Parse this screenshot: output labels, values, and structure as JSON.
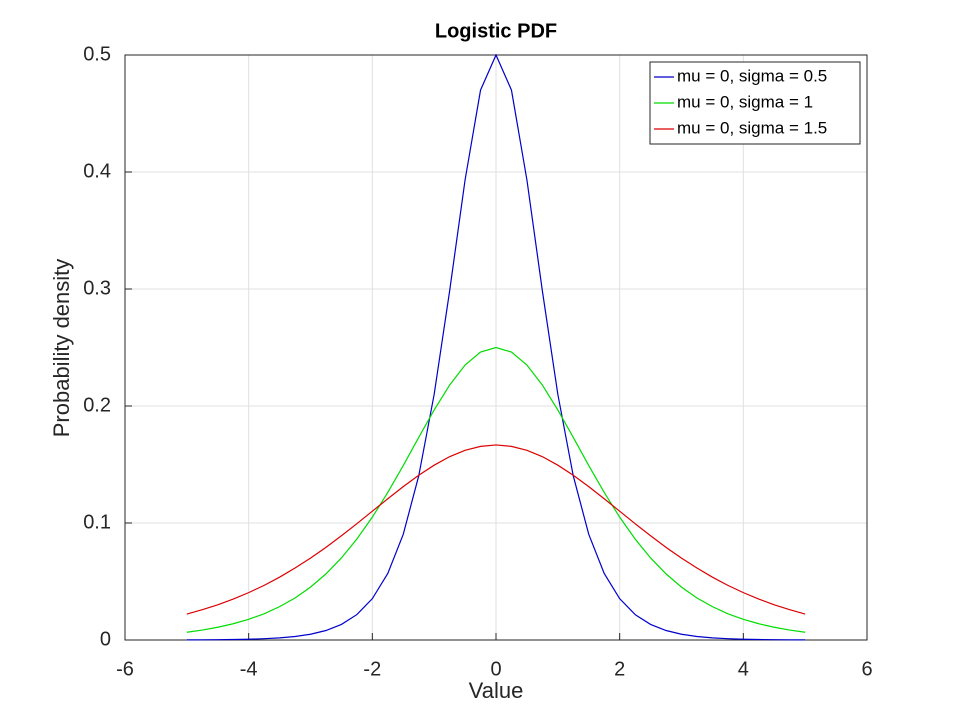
{
  "chart_data": {
    "type": "line",
    "title": "Logistic PDF",
    "x_label": "Value",
    "y_label": "Probability density",
    "x": [
      -5,
      -4.75,
      -4.5,
      -4.25,
      -4,
      -3.75,
      -3.5,
      -3.25,
      -3,
      -2.75,
      -2.5,
      -2.25,
      -2,
      -1.75,
      -1.5,
      -1.25,
      -1,
      -0.75,
      -0.5,
      -0.25,
      0,
      0.25,
      0.5,
      0.75,
      1,
      1.25,
      1.5,
      1.75,
      2,
      2.25,
      2.5,
      2.75,
      3,
      3.25,
      3.5,
      3.75,
      4,
      4.25,
      4.5,
      4.75,
      5
    ],
    "series": [
      {
        "name": "mu = 0, sigma = 0.5",
        "color": "#0000cc",
        "values": [
          9.1e-05,
          0.00015,
          0.000246,
          0.000406,
          0.00067,
          0.001106,
          0.00182,
          0.002998,
          0.00492,
          0.008108,
          0.013296,
          0.021732,
          0.035326,
          0.056906,
          0.090354,
          0.140206,
          0.209988,
          0.298292,
          0.393224,
          0.470008,
          0.5,
          0.470008,
          0.393224,
          0.298292,
          0.209988,
          0.140206,
          0.090354,
          0.056906,
          0.035326,
          0.021732,
          0.013296,
          0.008108,
          0.00492,
          0.002998,
          0.00182,
          0.001106,
          0.00067,
          0.000406,
          0.000246,
          0.00015,
          9.1e-05
        ]
      },
      {
        "name": "mu = 0, sigma = 1",
        "color": "#00dd00",
        "values": [
          0.0066,
          0.0085,
          0.0109,
          0.0139,
          0.0177,
          0.0224,
          0.0285,
          0.0359,
          0.0452,
          0.0565,
          0.0701,
          0.0863,
          0.105,
          0.1261,
          0.1491,
          0.1731,
          0.1966,
          0.2179,
          0.235,
          0.2461,
          0.25,
          0.2461,
          0.235,
          0.2179,
          0.1966,
          0.1731,
          0.1491,
          0.1261,
          0.105,
          0.0863,
          0.0701,
          0.0565,
          0.0452,
          0.0359,
          0.0285,
          0.0224,
          0.0177,
          0.0139,
          0.0109,
          0.0085,
          0.0066
        ]
      },
      {
        "name": "mu = 0, sigma = 1.5",
        "color": "#dd0000",
        "values": [
          0.0222,
          0.0259,
          0.0301,
          0.035,
          0.0405,
          0.0467,
          0.0537,
          0.0615,
          0.07,
          0.0792,
          0.0891,
          0.0994,
          0.1101,
          0.1207,
          0.1311,
          0.1408,
          0.1494,
          0.1567,
          0.1621,
          0.1655,
          0.1667,
          0.1655,
          0.1621,
          0.1567,
          0.1494,
          0.1408,
          0.1311,
          0.1207,
          0.1101,
          0.0994,
          0.0891,
          0.0792,
          0.07,
          0.0615,
          0.0537,
          0.0467,
          0.0405,
          0.035,
          0.0301,
          0.0259,
          0.0222
        ]
      }
    ],
    "xlim": [
      -6,
      6
    ],
    "xticks": [
      -6,
      -4,
      -2,
      0,
      2,
      4,
      6
    ],
    "ylim": [
      0,
      0.5
    ],
    "yticks": [
      0,
      0.1,
      0.2,
      0.3,
      0.4,
      0.5
    ],
    "grid": true,
    "legend": "top-right"
  }
}
